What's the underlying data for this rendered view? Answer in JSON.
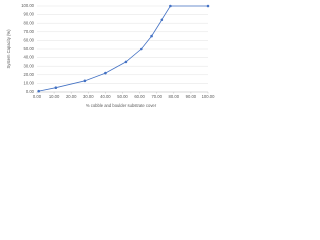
{
  "chart_data": {
    "type": "line",
    "x_label": "% cobble and boulder substrate cover",
    "y_label": "System Capacity (%)",
    "x": [
      1,
      11,
      28,
      40,
      52,
      61,
      67,
      73,
      78,
      100
    ],
    "series": [
      {
        "name": "System Capacity",
        "color": "#4472c4",
        "values": [
          1,
          5,
          13,
          22,
          35,
          50,
          65,
          84,
          100,
          100
        ]
      }
    ],
    "xlim": [
      0,
      100
    ],
    "xticks": [
      {
        "value": 0,
        "label": "0.00"
      },
      {
        "value": 10,
        "label": "10.00"
      },
      {
        "value": 20,
        "label": "20.00"
      },
      {
        "value": 30,
        "label": "30.00"
      },
      {
        "value": 40,
        "label": "40.00"
      },
      {
        "value": 50,
        "label": "50.00"
      },
      {
        "value": 60,
        "label": "60.00"
      },
      {
        "value": 70,
        "label": "70.00"
      },
      {
        "value": 80,
        "label": "80.00"
      },
      {
        "value": 90,
        "label": "90.00"
      },
      {
        "value": 100,
        "label": "100.00"
      }
    ],
    "ylim": [
      0,
      100
    ],
    "yticks": [
      {
        "value": 0,
        "label": "0.00"
      },
      {
        "value": 10,
        "label": "10.00"
      },
      {
        "value": 20,
        "label": "20.00"
      },
      {
        "value": 30,
        "label": "30.00"
      },
      {
        "value": 40,
        "label": "40.00"
      },
      {
        "value": 50,
        "label": "50.00"
      },
      {
        "value": 60,
        "label": "60.00"
      },
      {
        "value": 70,
        "label": "70.00"
      },
      {
        "value": 80,
        "label": "80.00"
      },
      {
        "value": 90,
        "label": "90.00"
      },
      {
        "value": 100,
        "label": "100.00"
      }
    ],
    "grid": true
  }
}
